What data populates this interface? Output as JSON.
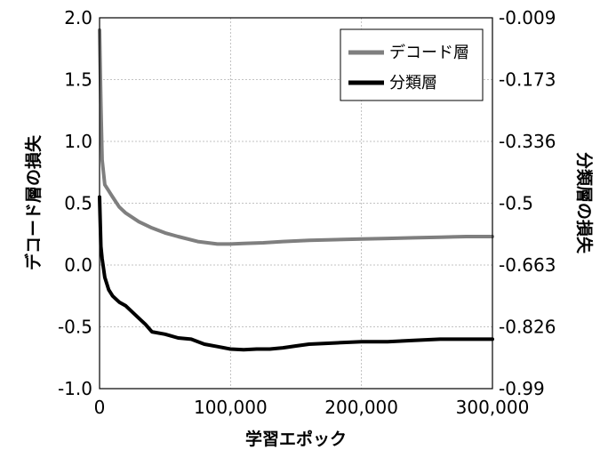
{
  "chart_data": {
    "type": "line",
    "xlabel": "学習エポック",
    "ylabel_left": "デコード層の損失",
    "ylabel_right": "分類層の損失",
    "xlim": [
      0,
      300000
    ],
    "ylim_left": [
      -1.0,
      2.0
    ],
    "ylim_right": [
      -0.99,
      -0.009
    ],
    "x_ticks": [
      "0",
      "100,000",
      "200,000",
      "300,000"
    ],
    "y_ticks_left": [
      "2.0",
      "1.5",
      "1.0",
      "0.5",
      "0.0",
      "-0.5",
      "-1.0"
    ],
    "y_ticks_right": [
      "-0.009",
      "-0.173",
      "-0.336",
      "-0.5",
      "-0.663",
      "-0.826",
      "-0.99"
    ],
    "grid": true,
    "legend_position": "top-right",
    "series": [
      {
        "name": "デコード層",
        "axis": "left",
        "color": "#7f7f7f",
        "x": [
          0,
          1000,
          2000,
          4000,
          7000,
          10000,
          15000,
          20000,
          30000,
          40000,
          50000,
          60000,
          75000,
          90000,
          100000,
          110000,
          125000,
          140000,
          160000,
          180000,
          200000,
          220000,
          240000,
          260000,
          280000,
          300000
        ],
        "values": [
          1.9,
          1.3,
          0.85,
          0.65,
          0.6,
          0.55,
          0.47,
          0.42,
          0.35,
          0.3,
          0.26,
          0.23,
          0.19,
          0.17,
          0.17,
          0.175,
          0.18,
          0.19,
          0.2,
          0.205,
          0.21,
          0.215,
          0.22,
          0.225,
          0.23,
          0.23
        ]
      },
      {
        "name": "分類層",
        "axis": "left",
        "color": "#000000",
        "x": [
          0,
          1000,
          2000,
          4000,
          7000,
          10000,
          15000,
          20000,
          25000,
          30000,
          35000,
          40000,
          50000,
          60000,
          70000,
          80000,
          90000,
          100000,
          110000,
          120000,
          130000,
          140000,
          150000,
          160000,
          180000,
          200000,
          220000,
          240000,
          260000,
          280000,
          300000
        ],
        "values": [
          0.55,
          0.15,
          0.05,
          -0.1,
          -0.2,
          -0.25,
          -0.3,
          -0.33,
          -0.38,
          -0.43,
          -0.48,
          -0.54,
          -0.56,
          -0.59,
          -0.6,
          -0.64,
          -0.66,
          -0.68,
          -0.685,
          -0.68,
          -0.68,
          -0.67,
          -0.655,
          -0.64,
          -0.63,
          -0.62,
          -0.62,
          -0.61,
          -0.6,
          -0.6,
          -0.6
        ]
      }
    ]
  }
}
